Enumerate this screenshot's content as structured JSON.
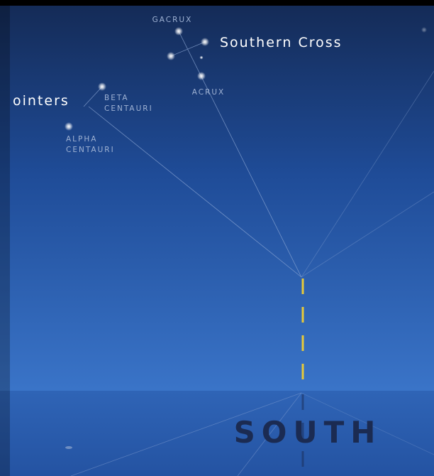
{
  "labels": {
    "gacrux": "GACRUX",
    "southern_cross": "Southern Cross",
    "acrux": "ACRUX",
    "pointers": "ointers",
    "beta_centauri": [
      "BETA",
      "CENTAURI"
    ],
    "alpha_centauri": [
      "ALPHA",
      "CENTAURI"
    ],
    "south": "SOUTH"
  }
}
